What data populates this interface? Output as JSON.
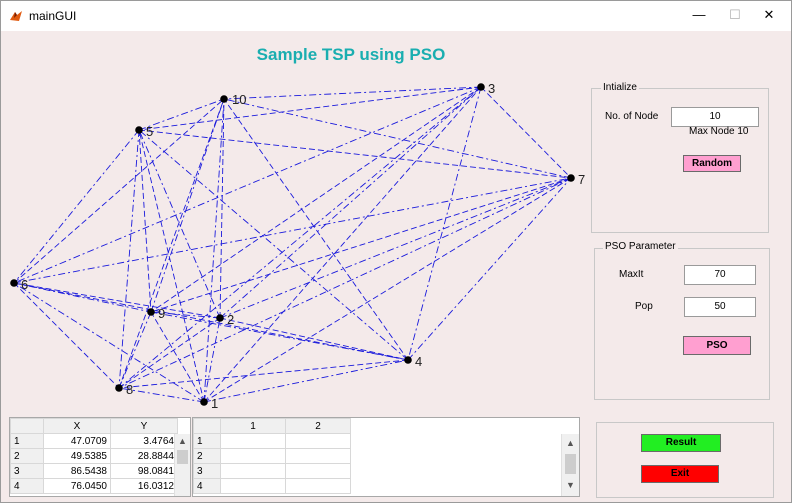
{
  "window": {
    "title": "mainGUI",
    "minimize": "—",
    "maximize": "☐",
    "close": "✕"
  },
  "plot": {
    "title": "Sample TSP using PSO",
    "edge_color": "#1a1adc",
    "nodes": [
      {
        "label": "1"
      },
      {
        "label": "2"
      },
      {
        "label": "3"
      },
      {
        "label": "4"
      },
      {
        "label": "5"
      },
      {
        "label": "6"
      },
      {
        "label": "7"
      },
      {
        "label": "8"
      },
      {
        "label": "9"
      },
      {
        "label": "10"
      }
    ]
  },
  "initialize": {
    "title": "Intialize",
    "node_label": "No. of Node",
    "node_value": "10",
    "max_label": "Max Node 10",
    "random_label": "Random"
  },
  "pso": {
    "title": "PSO Parameter",
    "maxit_label": "MaxIt",
    "maxit_value": "70",
    "pop_label": "Pop",
    "pop_value": "50",
    "pso_label": "PSO"
  },
  "coords_table": {
    "headers": [
      "X",
      "Y"
    ],
    "rows": [
      {
        "idx": "1",
        "x": "47.0709",
        "y": "3.4764"
      },
      {
        "idx": "2",
        "x": "49.5385",
        "y": "28.8844"
      },
      {
        "idx": "3",
        "x": "86.5438",
        "y": "98.0841"
      },
      {
        "idx": "4",
        "x": "76.0450",
        "y": "16.0312"
      }
    ]
  },
  "result_table": {
    "headers": [
      "1",
      "2"
    ],
    "rows": [
      "1",
      "2",
      "3",
      "4"
    ]
  },
  "actions": {
    "result_label": "Result",
    "exit_label": "Exit"
  },
  "colors": {
    "title": "#1aaeb0",
    "random_btn": "#ff9fd0",
    "pso_btn": "#ff9fd0",
    "result_btn": "#22ee22",
    "exit_btn": "#ff0000",
    "background": "#f4eaea"
  }
}
